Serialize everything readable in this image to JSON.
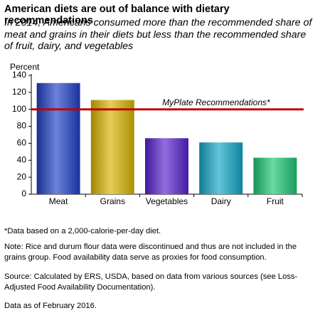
{
  "chart_data": {
    "type": "bar",
    "title": "American diets are out of balance with dietary recommendations",
    "subtitle": "In 2014, Americans consumed more than the recommended share of meat and grains in their diets but less than the recommended share of fruit, dairy, and vegetables",
    "y_label": "Percent",
    "categories": [
      "Meat",
      "Grains",
      "Vegetables",
      "Dairy",
      "Fruit"
    ],
    "values": [
      131,
      111,
      66,
      61,
      43
    ],
    "colors": [
      "#1f3fc4",
      "#d6b400",
      "#5520cc",
      "#12a4c4",
      "#1cc472"
    ],
    "ylim": [
      0,
      140
    ],
    "yticks": [
      0,
      20,
      40,
      60,
      80,
      100,
      120,
      140
    ],
    "reference_line": {
      "value": 100,
      "label": "MyPlate Recommendations*",
      "color": "#c00000"
    },
    "notes": [
      "*Data based on a 2,000-calorie-per-day diet.",
      "Note: Rice and durum flour data were discontinued and thus are not included in the grains group. Food availability data serve as proxies for food consumption.",
      "Source: Calculated by ERS, USDA, based on data from various sources (see Loss-Adjusted Food Availability Documentation).",
      "Data as of February 2016."
    ]
  }
}
